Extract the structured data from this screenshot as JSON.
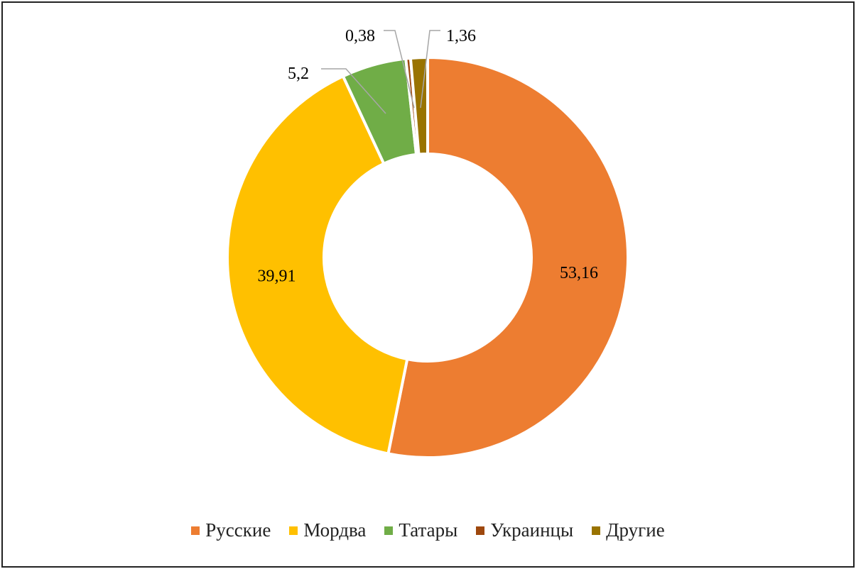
{
  "chart_data": {
    "type": "donut",
    "categories": [
      "Русские",
      "Мордва",
      "Татары",
      "Украинцы",
      "Другие"
    ],
    "values": [
      53.16,
      39.91,
      5.2,
      0.38,
      1.36
    ],
    "value_labels": [
      "53,16",
      "39,91",
      "5,2",
      "0,38",
      "1,36"
    ],
    "colors": [
      "#ED7D31",
      "#FFC000",
      "#70AD47",
      "#9E480E",
      "#997300"
    ],
    "start_angle_deg": 0,
    "direction": "clockwise",
    "legend_position": "bottom"
  }
}
